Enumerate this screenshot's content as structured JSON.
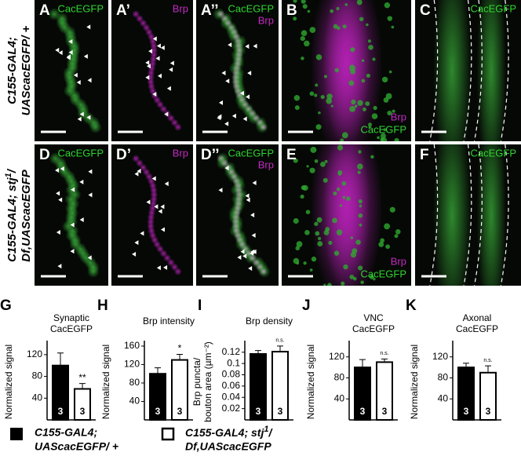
{
  "rows": [
    {
      "label_line1": "C155-GAL4;",
      "label_line2": "UAScacEGFP/ +"
    },
    {
      "label_line1a": "C155-GAL4; stj",
      "label_sup": "1",
      "label_line1b": "/",
      "label_line2": "Df,UAScacEGFP"
    }
  ],
  "panels": [
    {
      "letter": "A",
      "green": "CacEGFP"
    },
    {
      "letter": "A’",
      "magenta": "Brp"
    },
    {
      "letter": "A’’",
      "green": "CacEGFP",
      "magenta": "Brp"
    },
    {
      "letter": "B",
      "magenta": "Brp",
      "green": "CacEGFP"
    },
    {
      "letter": "C",
      "green": "CacEGFP"
    },
    {
      "letter": "D",
      "green": "CacEGFP"
    },
    {
      "letter": "D’",
      "magenta": "Brp"
    },
    {
      "letter": "D’’",
      "green": "CacEGFP",
      "magenta": "Brp"
    },
    {
      "letter": "E",
      "magenta": "Brp",
      "green": "CacEGFP"
    },
    {
      "letter": "F",
      "green": "CacEGFP"
    }
  ],
  "chart_data": [
    {
      "type": "bar",
      "letter": "G",
      "title": [
        "Synaptic",
        "CacEGFP"
      ],
      "ylabel": [
        "Normalized signal"
      ],
      "values": [
        100,
        57
      ],
      "errors": [
        23,
        10
      ],
      "n": [
        3,
        3
      ],
      "significance": "**",
      "colors": [
        "#000000",
        "#ffffff"
      ],
      "ylim": [
        0,
        140
      ],
      "yticks": [
        40,
        80,
        120
      ]
    },
    {
      "type": "bar",
      "letter": "H",
      "title": [
        "Brp intensity"
      ],
      "ylabel": [
        "Normalized signal"
      ],
      "values": [
        100,
        130
      ],
      "errors": [
        13,
        12
      ],
      "n": [
        3,
        3
      ],
      "significance": "*",
      "colors": [
        "#000000",
        "#ffffff"
      ],
      "ylim": [
        0,
        165
      ],
      "yticks": [
        40,
        80,
        120,
        160
      ]
    },
    {
      "type": "bar",
      "letter": "I",
      "title": [
        "Brp density"
      ],
      "ylabel": [
        "Brp puncta/",
        "bouton area (µm⁻²)"
      ],
      "values": [
        0.117,
        0.121
      ],
      "errors": [
        0.006,
        0.01
      ],
      "n": [
        3,
        3
      ],
      "significance": "n.s.",
      "colors": [
        "#000000",
        "#ffffff"
      ],
      "ylim": [
        0,
        0.135
      ],
      "yticks": [
        0.02,
        0.04,
        0.06,
        0.08,
        0.1,
        0.12
      ]
    },
    {
      "type": "bar",
      "letter": "J",
      "title": [
        "VNC",
        "CacEGFP"
      ],
      "ylabel": [
        "Normalized signal"
      ],
      "values": [
        100,
        110
      ],
      "errors": [
        15,
        6
      ],
      "n": [
        3,
        3
      ],
      "significance": "n.s.",
      "colors": [
        "#000000",
        "#ffffff"
      ],
      "ylim": [
        0,
        145
      ],
      "yticks": [
        40,
        80,
        120
      ]
    },
    {
      "type": "bar",
      "letter": "K",
      "title": [
        "Axonal",
        "CacEGFP"
      ],
      "ylabel": [
        "Normalized signal"
      ],
      "values": [
        100,
        90
      ],
      "errors": [
        8,
        13
      ],
      "n": [
        3,
        3
      ],
      "significance": "n.s.",
      "colors": [
        "#000000",
        "#ffffff"
      ],
      "ylim": [
        0,
        145
      ],
      "yticks": [
        40,
        80,
        120
      ]
    }
  ],
  "legend": [
    {
      "color": "#000000",
      "line1": "C155-GAL4;",
      "line2": "UAScacEGFP/ +"
    },
    {
      "color": "#ffffff",
      "line1a": "C155-GAL4; stj",
      "sup": "1",
      "line1b": "/",
      "line2": "Df,UAScacEGFP"
    }
  ]
}
